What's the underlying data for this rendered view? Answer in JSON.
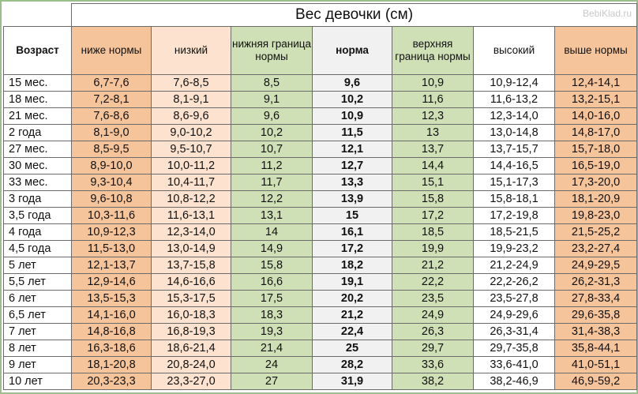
{
  "title": "Вес девочки (см)",
  "watermark": "BebiKlad.ru",
  "age_header": "Возраст",
  "columns": [
    {
      "label": "ниже нормы",
      "style": "orange"
    },
    {
      "label": "низкий",
      "style": "peach"
    },
    {
      "label": "нижняя граница нормы",
      "style": "green"
    },
    {
      "label": "норма",
      "style": "norm"
    },
    {
      "label": "верхняя граница нормы",
      "style": "green"
    },
    {
      "label": "высокий",
      "style": "white"
    },
    {
      "label": "выше нормы",
      "style": "orange"
    }
  ],
  "rows": [
    {
      "age": "15 мес.",
      "values": [
        "6,7-7,6",
        "7,6-8,5",
        "8,5",
        "9,6",
        "10,9",
        "10,9-12,4",
        "12,4-14,1"
      ]
    },
    {
      "age": "18 мес.",
      "values": [
        "7,2-8,1",
        "8,1-9,1",
        "9,1",
        "10,2",
        "11,6",
        "11,6-13,2",
        "13,2-15,1"
      ]
    },
    {
      "age": "21 мес.",
      "values": [
        "7,6-8,6",
        "8,6-9,6",
        "9,6",
        "10,9",
        "12,3",
        "12,3-14,0",
        "14,0-16,0"
      ]
    },
    {
      "age": "2 года",
      "values": [
        "8,1-9,0",
        "9,0-10,2",
        "10,2",
        "11,5",
        "13",
        "13,0-14,8",
        "14,8-17,0"
      ]
    },
    {
      "age": "27 мес.",
      "values": [
        "8,5-9,5",
        "9,5-10,7",
        "10,7",
        "12,1",
        "13,7",
        "13,7-15,7",
        "15,7-18,0"
      ]
    },
    {
      "age": "30 мес.",
      "values": [
        "8,9-10,0",
        "10,0-11,2",
        "11,2",
        "12,7",
        "14,4",
        "14,4-16,5",
        "16,5-19,0"
      ]
    },
    {
      "age": "33 мес.",
      "values": [
        "9,3-10,4",
        "10,4-11,7",
        "11,7",
        "13,3",
        "15,1",
        "15,1-17,3",
        "17,3-20,0"
      ]
    },
    {
      "age": "3 года",
      "values": [
        "9,6-10,8",
        "10,8-12,2",
        "12,2",
        "13,9",
        "15,8",
        "15,8-18,1",
        "18,1-20,9"
      ]
    },
    {
      "age": "3,5 года",
      "values": [
        "10,3-11,6",
        "11,6-13,1",
        "13,1",
        "15",
        "17,2",
        "17,2-19,8",
        "19,8-23,0"
      ]
    },
    {
      "age": "4 года",
      "values": [
        "10,9-12,3",
        "12,3-14,0",
        "14",
        "16,1",
        "18,5",
        "18,5-21,5",
        "21,5-25,2"
      ]
    },
    {
      "age": "4,5 года",
      "values": [
        "11,5-13,0",
        "13,0-14,9",
        "14,9",
        "17,2",
        "19,9",
        "19,9-23,2",
        "23,2-27,4"
      ]
    },
    {
      "age": "5 лет",
      "values": [
        "12,1-13,7",
        "13,7-15,8",
        "15,8",
        "18,2",
        "21,2",
        "21,2-24,9",
        "24,9-29,5"
      ]
    },
    {
      "age": "5,5 лет",
      "values": [
        "12,9-14,6",
        "14,6-16,6",
        "16,6",
        "19,1",
        "22,2",
        "22,2-26,2",
        "26,2-31,3"
      ]
    },
    {
      "age": "6 лет",
      "values": [
        "13,5-15,3",
        "15,3-17,5",
        "17,5",
        "20,2",
        "23,5",
        "23,5-27,8",
        "27,8-33,4"
      ]
    },
    {
      "age": "6,5 лет",
      "values": [
        "14,1-16,0",
        "16,0-18,3",
        "18,3",
        "21,2",
        "24,9",
        "24,9-29,6",
        "29,6-35,8"
      ]
    },
    {
      "age": "7 лет",
      "values": [
        "14,8-16,8",
        "16,8-19,3",
        "19,3",
        "22,4",
        "26,3",
        "26,3-31,4",
        "31,4-38,3"
      ]
    },
    {
      "age": "8 лет",
      "values": [
        "16,3-18,6",
        "18,6-21,4",
        "21,4",
        "25",
        "29,7",
        "29,7-35,8",
        "35,8-44,1"
      ]
    },
    {
      "age": "9 лет",
      "values": [
        "18,1-20,8",
        "20,8-24,0",
        "24",
        "28,2",
        "33,6",
        "33,6-41,0",
        "41,0-51,1"
      ]
    },
    {
      "age": "10 лет",
      "values": [
        "20,3-23,3",
        "23,3-27,0",
        "27",
        "31,9",
        "38,2",
        "38,2-46,9",
        "46,9-59,2"
      ]
    }
  ]
}
